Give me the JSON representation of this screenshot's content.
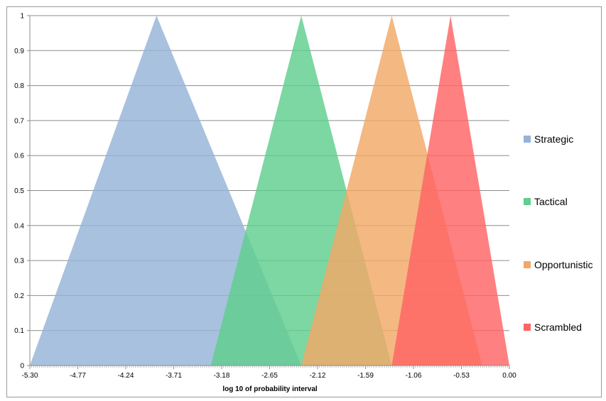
{
  "chart_data": {
    "type": "area",
    "title": "",
    "xlabel": "log 10 of probability interval",
    "ylabel": "",
    "xlim": [
      -5.3,
      0.0
    ],
    "ylim": [
      0,
      1
    ],
    "x_ticks": [
      "-5.30",
      "-4.77",
      "-4.24",
      "-3.71",
      "-3.18",
      "-2.65",
      "-2.12",
      "-1.59",
      "-1.06",
      "-0.53",
      "0.00"
    ],
    "y_ticks": [
      "0",
      "0.1",
      "0.2",
      "0.3",
      "0.4",
      "0.5",
      "0.6",
      "0.7",
      "0.8",
      "0.9",
      "1"
    ],
    "grid": "horizontal",
    "legend_position": "right",
    "series": [
      {
        "name": "Strategic",
        "color": "#95b3d7",
        "x": [
          -5.3,
          -3.9,
          -2.3
        ],
        "y": [
          0,
          1,
          0
        ]
      },
      {
        "name": "Tactical",
        "color": "#5fce8e",
        "x": [
          -3.3,
          -2.3,
          -1.3
        ],
        "y": [
          0,
          1,
          0
        ]
      },
      {
        "name": "Opportunistic",
        "color": "#f2a867",
        "x": [
          -2.3,
          -1.3,
          -0.3
        ],
        "y": [
          0,
          1,
          0
        ]
      },
      {
        "name": "Scrambled",
        "color": "#ff6464",
        "x": [
          -1.3,
          -0.65,
          0.0
        ],
        "y": [
          0,
          1,
          0
        ]
      }
    ]
  }
}
